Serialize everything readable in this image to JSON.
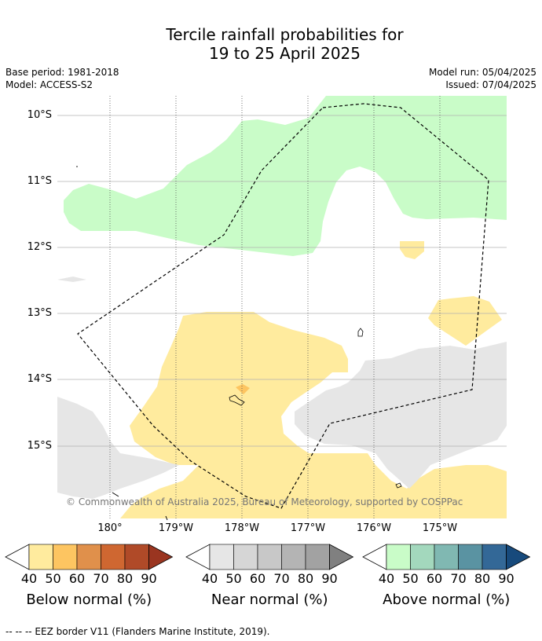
{
  "header": {
    "title_line1": "Tercile rainfall probabilities for",
    "title_line2": "19 to 25 April 2025",
    "base_period": "Base period: 1981-2018",
    "model": "Model: ACCESS-S2",
    "model_run": "Model run: 05/04/2025",
    "issued": "Issued: 07/04/2025"
  },
  "map": {
    "lat_labels": [
      "10°S",
      "11°S",
      "12°S",
      "13°S",
      "14°S",
      "15°S"
    ],
    "lon_labels": [
      "180°",
      "179°W",
      "178°W",
      "177°W",
      "176°W",
      "175°W"
    ],
    "copyright": "© Commonwealth of Australia 2025, Bureau of Meteorology, supported by COSPPac",
    "colors": {
      "above_40": "#c9fcc8",
      "below_40": "#ffeb9e",
      "below_50": "#fdc561",
      "near_40": "#e6e6e6",
      "grid": "#b0b0b0"
    }
  },
  "colorbars": [
    {
      "name": "below",
      "title": "Below normal (%)",
      "ticks": [
        "40",
        "50",
        "60",
        "70",
        "80",
        "90"
      ],
      "colors": [
        "#ffeb9e",
        "#fdc561",
        "#e0904b",
        "#cf6731",
        "#b04a28",
        "#9a3520"
      ]
    },
    {
      "name": "near",
      "title": "Near normal (%)",
      "ticks": [
        "40",
        "50",
        "60",
        "70",
        "80",
        "90"
      ],
      "colors": [
        "#e6e6e6",
        "#d6d6d6",
        "#c8c8c8",
        "#b4b4b4",
        "#a2a2a2",
        "#808080"
      ]
    },
    {
      "name": "above",
      "title": "Above normal (%)",
      "ticks": [
        "40",
        "50",
        "60",
        "70",
        "80",
        "90"
      ],
      "colors": [
        "#c9fcc8",
        "#a3d8bd",
        "#80b8b2",
        "#5a93a2",
        "#336897",
        "#174a7c"
      ]
    }
  ],
  "footnote": "--  --  -- EEZ border V11 (Flanders Marine Institute, 2019)."
}
